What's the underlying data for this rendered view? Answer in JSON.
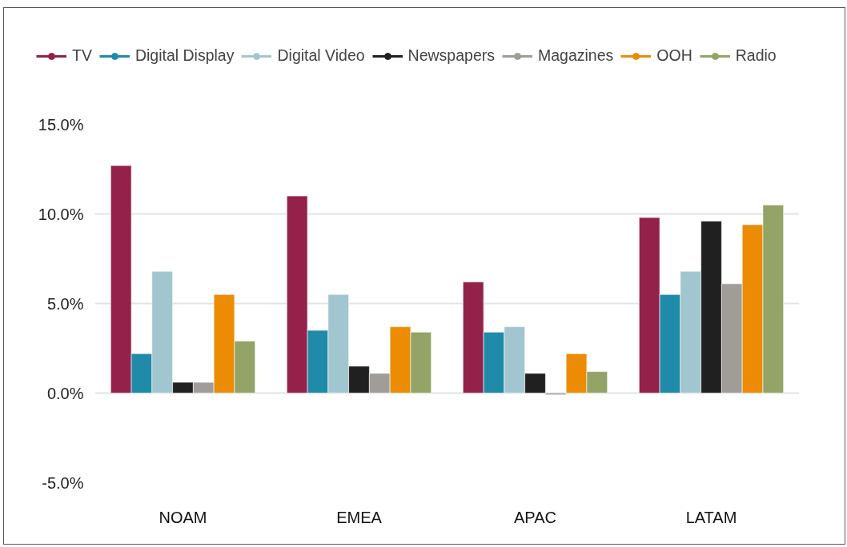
{
  "chart_data": {
    "type": "bar",
    "categories": [
      "NOAM",
      "EMEA",
      "APAC",
      "LATAM"
    ],
    "series": [
      {
        "name": "TV",
        "color": "#93214a",
        "values": [
          12.7,
          11.0,
          6.2,
          9.8
        ]
      },
      {
        "name": "Digital Display",
        "color": "#1f8ba8",
        "values": [
          2.2,
          3.5,
          3.4,
          5.5
        ]
      },
      {
        "name": "Digital Video",
        "color": "#a2c6cf",
        "values": [
          6.8,
          5.5,
          3.7,
          6.8
        ]
      },
      {
        "name": "Newspapers",
        "color": "#202020",
        "values": [
          0.6,
          1.5,
          1.1,
          9.6
        ]
      },
      {
        "name": "Magazines",
        "color": "#a09d99",
        "values": [
          0.6,
          1.1,
          -0.1,
          6.1
        ]
      },
      {
        "name": "OOH",
        "color": "#ec8b04",
        "values": [
          5.5,
          3.7,
          2.2,
          9.4
        ]
      },
      {
        "name": "Radio",
        "color": "#93a466",
        "values": [
          2.9,
          3.4,
          1.2,
          10.5
        ]
      }
    ],
    "ylim": [
      -5,
      15
    ],
    "yticks": [
      {
        "value": -5,
        "label": "-5.0%"
      },
      {
        "value": 0,
        "label": "0.0%"
      },
      {
        "value": 5,
        "label": "5.0%"
      },
      {
        "value": 10,
        "label": "10.0%"
      },
      {
        "value": 15,
        "label": "15.0%"
      }
    ],
    "grid": "y",
    "legend": "top"
  }
}
